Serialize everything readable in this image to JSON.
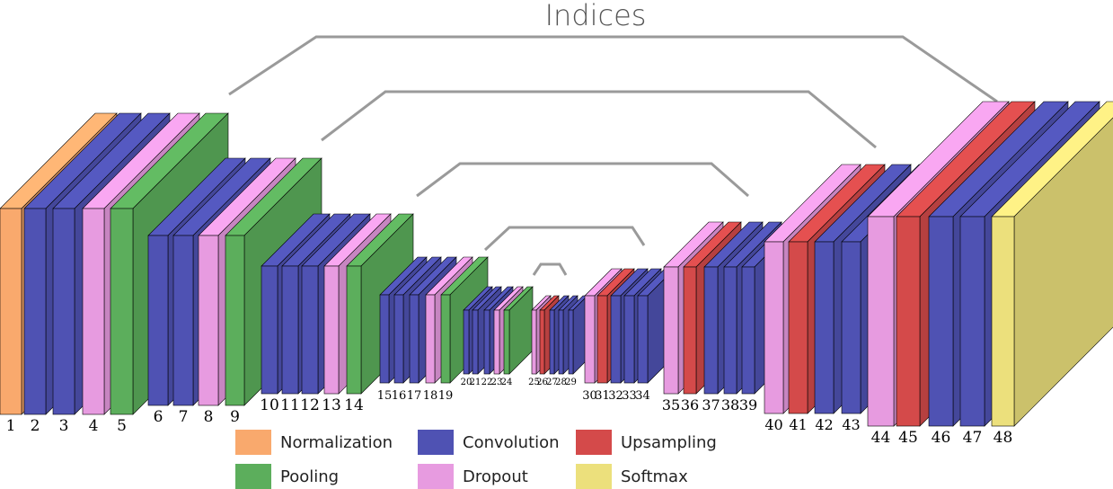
{
  "title": "Indices",
  "colors": {
    "normalization": "#f9a96d",
    "convolution": "#4f52b3",
    "pooling": "#5cae5c",
    "dropout": "#e79be0",
    "upsampling": "#d44a4a",
    "softmax": "#ece07c"
  },
  "legend": [
    {
      "key": "normalization",
      "label": "Normalization"
    },
    {
      "key": "convolution",
      "label": "Convolution"
    },
    {
      "key": "upsampling",
      "label": "Upsampling"
    },
    {
      "key": "pooling",
      "label": "Pooling"
    },
    {
      "key": "dropout",
      "label": "Dropout"
    },
    {
      "key": "softmax",
      "label": "Softmax"
    }
  ],
  "layers": [
    {
      "n": "1",
      "type": "normalization"
    },
    {
      "n": "2",
      "type": "convolution"
    },
    {
      "n": "3",
      "type": "convolution"
    },
    {
      "n": "4",
      "type": "dropout"
    },
    {
      "n": "5",
      "type": "pooling"
    },
    {
      "n": "6",
      "type": "convolution"
    },
    {
      "n": "7",
      "type": "convolution"
    },
    {
      "n": "8",
      "type": "dropout"
    },
    {
      "n": "9",
      "type": "pooling"
    },
    {
      "n": "10",
      "type": "convolution"
    },
    {
      "n": "11",
      "type": "convolution"
    },
    {
      "n": "12",
      "type": "convolution"
    },
    {
      "n": "13",
      "type": "dropout"
    },
    {
      "n": "14",
      "type": "pooling"
    },
    {
      "n": "15",
      "type": "convolution"
    },
    {
      "n": "16",
      "type": "convolution"
    },
    {
      "n": "17",
      "type": "convolution"
    },
    {
      "n": "18",
      "type": "dropout"
    },
    {
      "n": "19",
      "type": "pooling"
    },
    {
      "n": "20",
      "type": "convolution"
    },
    {
      "n": "21",
      "type": "convolution"
    },
    {
      "n": "22",
      "type": "convolution"
    },
    {
      "n": "23",
      "type": "dropout"
    },
    {
      "n": "24",
      "type": "pooling"
    },
    {
      "n": "25",
      "type": "dropout"
    },
    {
      "n": "26",
      "type": "upsampling"
    },
    {
      "n": "27",
      "type": "convolution"
    },
    {
      "n": "28",
      "type": "convolution"
    },
    {
      "n": "29",
      "type": "convolution"
    },
    {
      "n": "30",
      "type": "dropout"
    },
    {
      "n": "31",
      "type": "upsampling"
    },
    {
      "n": "32",
      "type": "convolution"
    },
    {
      "n": "33",
      "type": "convolution"
    },
    {
      "n": "34",
      "type": "convolution"
    },
    {
      "n": "35",
      "type": "dropout"
    },
    {
      "n": "36",
      "type": "upsampling"
    },
    {
      "n": "37",
      "type": "convolution"
    },
    {
      "n": "38",
      "type": "convolution"
    },
    {
      "n": "39",
      "type": "convolution"
    },
    {
      "n": "40",
      "type": "dropout"
    },
    {
      "n": "41",
      "type": "upsampling"
    },
    {
      "n": "42",
      "type": "convolution"
    },
    {
      "n": "43",
      "type": "convolution"
    },
    {
      "n": "44",
      "type": "dropout"
    },
    {
      "n": "45",
      "type": "upsampling"
    },
    {
      "n": "46",
      "type": "convolution"
    },
    {
      "n": "47",
      "type": "convolution"
    },
    {
      "n": "48",
      "type": "softmax"
    }
  ]
}
